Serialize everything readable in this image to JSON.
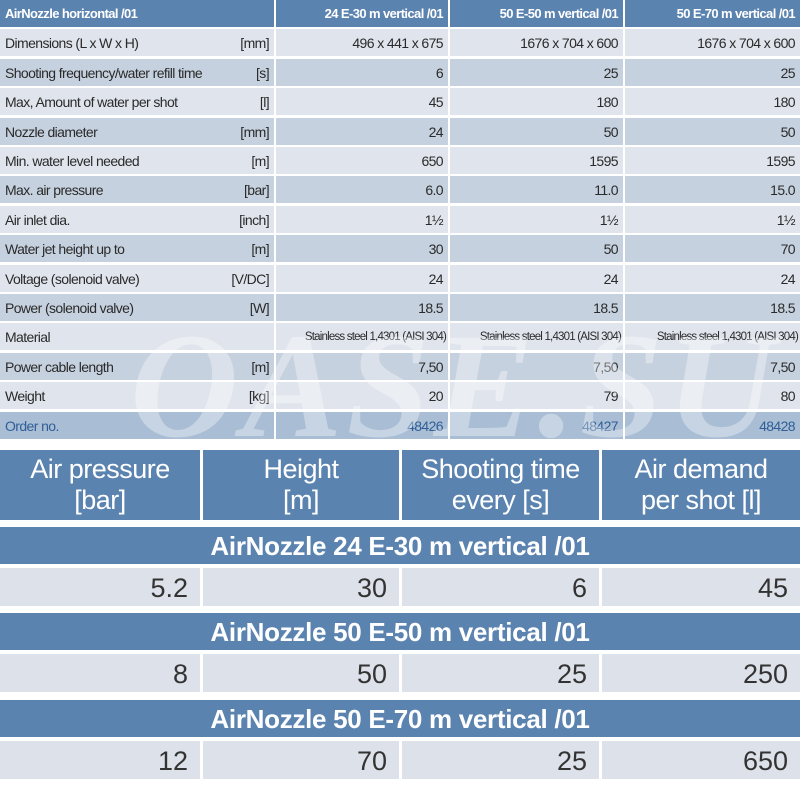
{
  "spec_table": {
    "header": [
      "AirNozzle horizontal /01",
      "24 E-30 m vertical /01",
      "50 E-50 m vertical /01",
      "50 E-70 m vertical /01"
    ],
    "rows": [
      {
        "label": "Dimensions (L x W x H)",
        "unit": "[mm]",
        "values": [
          "496 x 441 x 675",
          "1676 x 704 x 600",
          "1676 x 704 x 600"
        ]
      },
      {
        "label": "Shooting frequency/water refill time",
        "unit": "[s]",
        "values": [
          "6",
          "25",
          "25"
        ]
      },
      {
        "label": "Max, Amount of water per shot",
        "unit": "[l]",
        "values": [
          "45",
          "180",
          "180"
        ]
      },
      {
        "label": "Nozzle diameter",
        "unit": "[mm]",
        "values": [
          "24",
          "50",
          "50"
        ]
      },
      {
        "label": "Min. water level needed",
        "unit": "[m]",
        "values": [
          "650",
          "1595",
          "1595"
        ]
      },
      {
        "label": "Max. air pressure",
        "unit": "[bar]",
        "values": [
          "6.0",
          "11.0",
          "15.0"
        ]
      },
      {
        "label": "Air inlet dia.",
        "unit": "[inch]",
        "values": [
          "1½",
          "1½",
          "1½"
        ]
      },
      {
        "label": "Water jet height up to",
        "unit": "[m]",
        "values": [
          "30",
          "50",
          "70"
        ]
      },
      {
        "label": "Voltage (solenoid valve)",
        "unit": "[V/DC]",
        "values": [
          "24",
          "24",
          "24"
        ]
      },
      {
        "label": "Power (solenoid valve)",
        "unit": "[W]",
        "values": [
          "18.5",
          "18.5",
          "18.5"
        ]
      },
      {
        "label": "Material",
        "unit": "",
        "values": [
          "Stainless steel 1,4301 (AISI 304)",
          "Stainless steel 1,4301 (AISI 304)",
          "Stainless steel 1,4301 (AISI 304)"
        ]
      },
      {
        "label": "Power cable length",
        "unit": "[m]",
        "values": [
          "7,50",
          "7,50",
          "7,50"
        ]
      },
      {
        "label": "Weight",
        "unit": "[kg]",
        "values": [
          "20",
          "79",
          "80"
        ]
      },
      {
        "label": "Order no.",
        "unit": "",
        "values": [
          "48426",
          "48427",
          "48428"
        ]
      }
    ]
  },
  "watermark": "OASE.SU",
  "performance_table": {
    "header": [
      "Air pressure [bar]",
      "Height [m]",
      "Shooting time every [s]",
      "Air demand per shot [l]"
    ],
    "header_lines": [
      [
        "Air pressure",
        "[bar]"
      ],
      [
        "Height",
        "[m]"
      ],
      [
        "Shooting time",
        "every [s]"
      ],
      [
        "Air demand",
        "per shot [l]"
      ]
    ],
    "groups": [
      {
        "title": "AirNozzle 24 E-30 m vertical /01",
        "values": [
          "5.2",
          "30",
          "6",
          "45"
        ]
      },
      {
        "title": "AirNozzle 50 E-50 m vertical /01",
        "values": [
          "8",
          "50",
          "25",
          "250"
        ]
      },
      {
        "title": "AirNozzle 50 E-70 m vertical /01",
        "values": [
          "12",
          "70",
          "25",
          "650"
        ]
      }
    ]
  },
  "colors": {
    "header_blue": "#5b83b0",
    "row_light": "#e0e5ed",
    "row_dark": "#c6d1df",
    "order_row": "#a9bdd5",
    "order_text": "#2f5f95"
  }
}
